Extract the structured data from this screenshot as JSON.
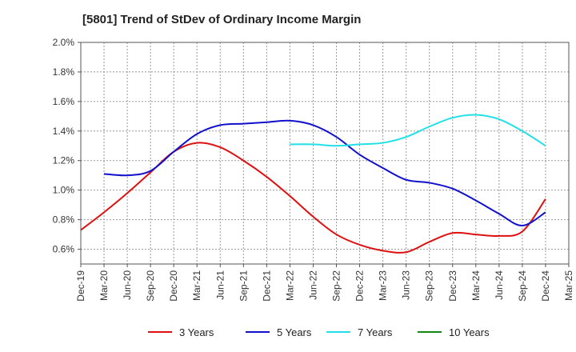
{
  "chart_data": {
    "type": "line",
    "title": "[5801]  Trend of StDev of Ordinary Income Margin",
    "xlabel": "",
    "ylabel": "",
    "x_tick_labels": [
      "Dec-19",
      "Mar-20",
      "Jun-20",
      "Sep-20",
      "Dec-20",
      "Mar-21",
      "Jun-21",
      "Sep-21",
      "Dec-21",
      "Mar-22",
      "Jun-22",
      "Sep-22",
      "Dec-22",
      "Mar-23",
      "Jun-23",
      "Sep-23",
      "Dec-23",
      "Mar-24",
      "Jun-24",
      "Sep-24",
      "Dec-24",
      "Mar-25"
    ],
    "y_tick_labels": [
      "0.6%",
      "0.8%",
      "1.0%",
      "1.2%",
      "1.4%",
      "1.6%",
      "1.8%",
      "2.0%"
    ],
    "ylim": [
      0.5,
      2.0
    ],
    "y_ticks": [
      0.6,
      0.8,
      1.0,
      1.2,
      1.4,
      1.6,
      1.8,
      2.0
    ],
    "grid": true,
    "legend_position": "bottom",
    "series": [
      {
        "name": "3 Years",
        "color": "#dd1111",
        "points": [
          [
            "Dec-19",
            0.73
          ],
          [
            "Mar-20",
            0.85
          ],
          [
            "Jun-20",
            0.98
          ],
          [
            "Sep-20",
            1.12
          ],
          [
            "Dec-20",
            1.26
          ],
          [
            "Mar-21",
            1.32
          ],
          [
            "Jun-21",
            1.29
          ],
          [
            "Sep-21",
            1.2
          ],
          [
            "Dec-21",
            1.09
          ],
          [
            "Mar-22",
            0.96
          ],
          [
            "Jun-22",
            0.82
          ],
          [
            "Sep-22",
            0.7
          ],
          [
            "Dec-22",
            0.63
          ],
          [
            "Mar-23",
            0.59
          ],
          [
            "Jun-23",
            0.58
          ],
          [
            "Sep-23",
            0.65
          ],
          [
            "Dec-23",
            0.71
          ],
          [
            "Mar-24",
            0.7
          ],
          [
            "Jun-24",
            0.69
          ],
          [
            "Sep-24",
            0.72
          ],
          [
            "Dec-24",
            0.94
          ]
        ]
      },
      {
        "name": "5 Years",
        "color": "#1111cc",
        "points": [
          [
            "Mar-20",
            1.11
          ],
          [
            "Jun-20",
            1.1
          ],
          [
            "Sep-20",
            1.13
          ],
          [
            "Dec-20",
            1.26
          ],
          [
            "Mar-21",
            1.38
          ],
          [
            "Jun-21",
            1.44
          ],
          [
            "Sep-21",
            1.45
          ],
          [
            "Dec-21",
            1.46
          ],
          [
            "Mar-22",
            1.47
          ],
          [
            "Jun-22",
            1.44
          ],
          [
            "Sep-22",
            1.36
          ],
          [
            "Dec-22",
            1.24
          ],
          [
            "Mar-23",
            1.15
          ],
          [
            "Jun-23",
            1.07
          ],
          [
            "Sep-23",
            1.05
          ],
          [
            "Dec-23",
            1.01
          ],
          [
            "Mar-24",
            0.93
          ],
          [
            "Jun-24",
            0.84
          ],
          [
            "Sep-24",
            0.76
          ],
          [
            "Dec-24",
            0.85
          ]
        ]
      },
      {
        "name": "7 Years",
        "color": "#22e0e8",
        "points": [
          [
            "Mar-22",
            1.31
          ],
          [
            "Jun-22",
            1.31
          ],
          [
            "Sep-22",
            1.3
          ],
          [
            "Dec-22",
            1.31
          ],
          [
            "Mar-23",
            1.32
          ],
          [
            "Jun-23",
            1.36
          ],
          [
            "Sep-23",
            1.43
          ],
          [
            "Dec-23",
            1.49
          ],
          [
            "Mar-24",
            1.51
          ],
          [
            "Jun-24",
            1.48
          ],
          [
            "Sep-24",
            1.4
          ],
          [
            "Dec-24",
            1.3
          ]
        ]
      },
      {
        "name": "10 Years",
        "color": "#118811",
        "points": []
      }
    ]
  }
}
